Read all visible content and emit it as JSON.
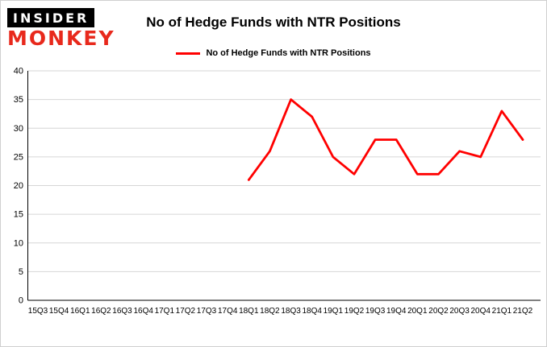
{
  "branding": {
    "insider": "INSIDER",
    "monkey": "MONKEY"
  },
  "header": {
    "title": "No of Hedge Funds with NTR Positions"
  },
  "legend": {
    "label": "No of Hedge Funds with NTR Positions"
  },
  "colors": {
    "series": "#ff0000",
    "grid": "#d6d6d6",
    "axis": "#000000",
    "logo_red": "#e8291c",
    "border": "#cfcfcf"
  },
  "chart_data": {
    "type": "line",
    "title": "No of Hedge Funds with NTR Positions",
    "categories": [
      "15Q3",
      "15Q4",
      "16Q1",
      "16Q2",
      "16Q3",
      "16Q4",
      "17Q1",
      "17Q2",
      "17Q3",
      "17Q4",
      "18Q1",
      "18Q2",
      "18Q3",
      "18Q4",
      "19Q1",
      "19Q2",
      "19Q3",
      "19Q4",
      "20Q1",
      "20Q2",
      "20Q3",
      "20Q4",
      "21Q1",
      "21Q2"
    ],
    "yticks": [
      0,
      5,
      10,
      15,
      20,
      25,
      30,
      35,
      40
    ],
    "ylim": [
      0,
      40
    ],
    "grid": true,
    "legend_position": "top",
    "series": [
      {
        "name": "No of Hedge Funds with NTR Positions",
        "color": "#ff0000",
        "start_index": 10,
        "values": [
          21,
          26,
          35,
          32,
          25,
          22,
          28,
          28,
          22,
          22,
          26,
          25,
          33,
          28
        ]
      }
    ]
  }
}
